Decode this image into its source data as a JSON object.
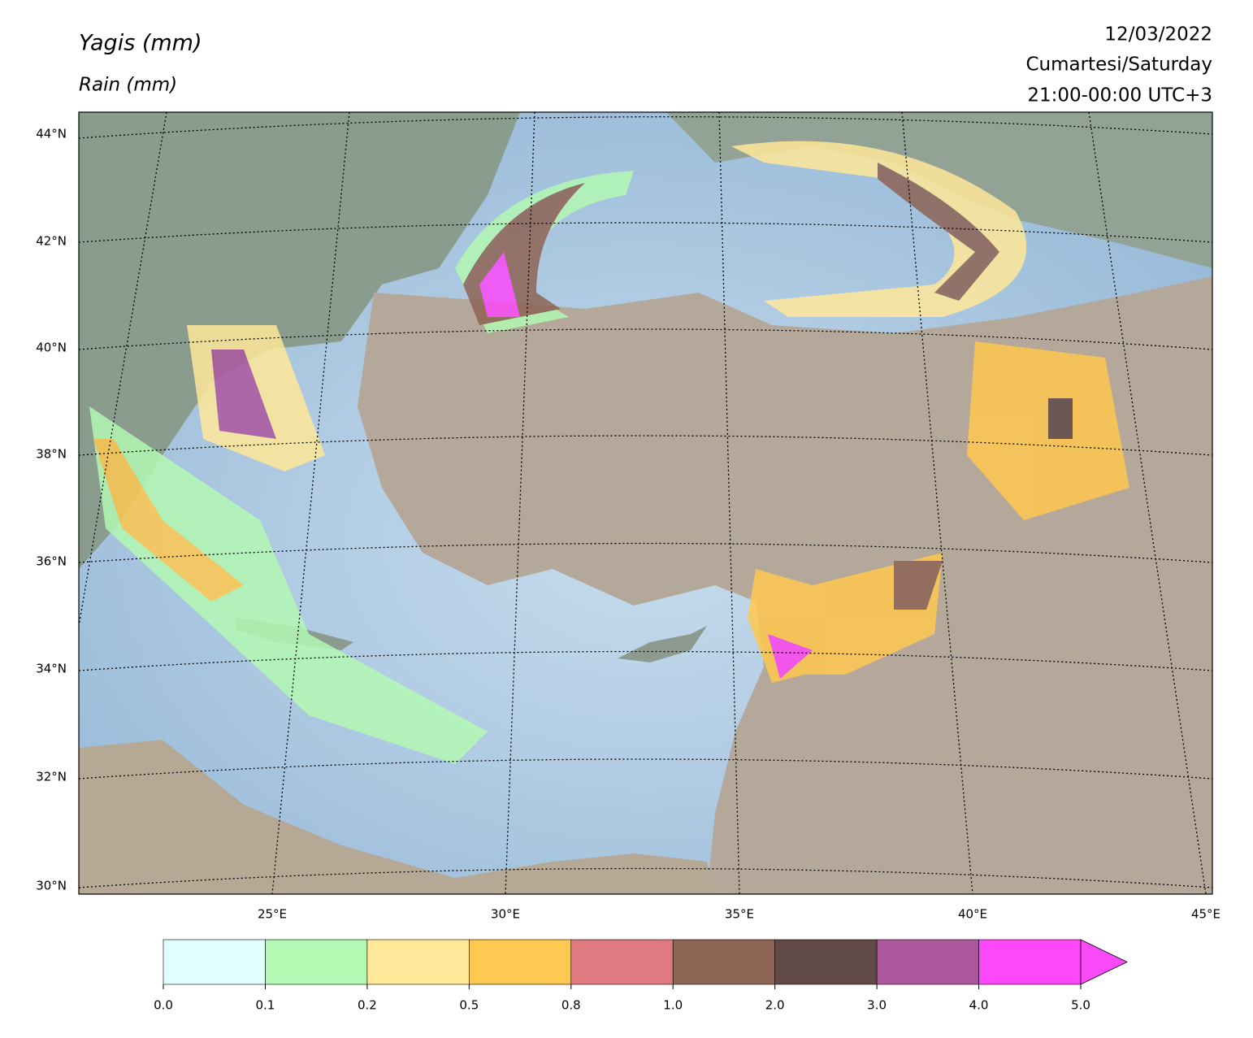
{
  "header": {
    "title": "Yagis (mm)",
    "subtitle": "Rain (mm)",
    "date": "12/03/2022",
    "day": "Cumartesi/Saturday",
    "time": "21:00-00:00 UTC+3"
  },
  "map": {
    "lat_labels": [
      "44°N",
      "42°N",
      "40°N",
      "38°N",
      "36°N",
      "34°N",
      "32°N",
      "30°N"
    ],
    "lon_labels": [
      "25°E",
      "30°E",
      "35°E",
      "40°E",
      "45°E"
    ]
  },
  "colorbar": {
    "ticks": [
      "0.0",
      "0.1",
      "0.2",
      "0.5",
      "0.8",
      "1.0",
      "2.0",
      "3.0",
      "4.0",
      "5.0"
    ],
    "colors": [
      "#e0ffff",
      "#b3f8b3",
      "#ffe899",
      "#ffc850",
      "#e07a80",
      "#8e6455",
      "#604a48",
      "#ad579f",
      "#fb48f9"
    ],
    "extend_color": "#f94af7"
  }
}
